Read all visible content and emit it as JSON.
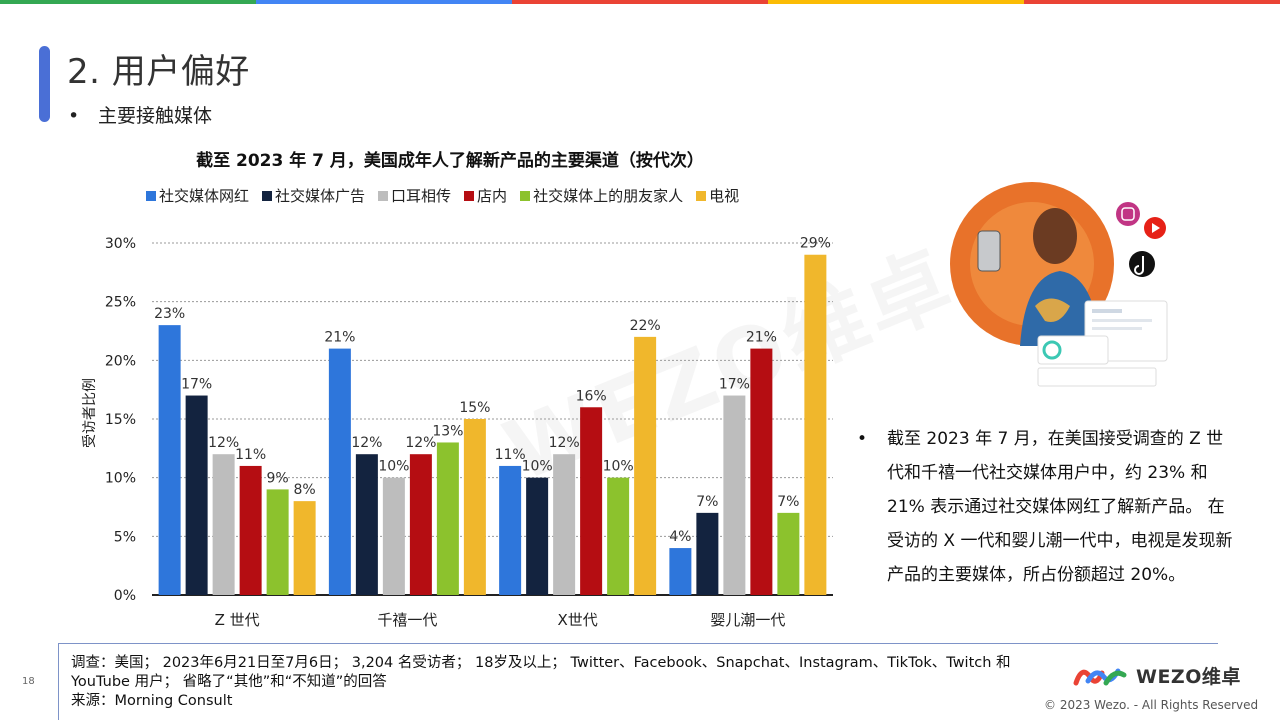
{
  "slide": {
    "title": "2. 用户偏好",
    "subtitle": "主要接触媒体",
    "page_number": "18",
    "watermark": "WEZO维卓"
  },
  "side_note": {
    "text": "截至 2023 年 7 月，在美国接受调查的 Z 世代和千禧一代社交媒体用户中，约 23% 和 21% 表示通过社交媒体网红了解新产品。 在受访的 X 一代和婴儿潮一代中，电视是发现新产品的主要媒体，所占份额超过 20%。"
  },
  "footer": {
    "survey": "调查：美国； 2023年6月21日至7月6日； 3,204 名受访者； 18岁及以上； Twitter、Facebook、Snapchat、Instagram、TikTok、Twitch 和 YouTube 用户； 省略了“其他”和“不知道”的回答",
    "source": "来源：Morning Consult",
    "logo_text": "WEZO维卓",
    "copyright": "© 2023 Wezo. - All Rights Reserved"
  },
  "colors": {
    "topbar": [
      "#34a853",
      "#4285f4",
      "#ea4335",
      "#fbbc05",
      "#ea4335"
    ],
    "accent": "#4a6fd6"
  },
  "chart_data": {
    "type": "bar",
    "title": "截至 2023 年 7 月，美国成年人了解新产品的主要渠道（按代次）",
    "xlabel": "",
    "ylabel": "受访者比例",
    "ylim": [
      0,
      30
    ],
    "yticks": [
      "0%",
      "5%",
      "10%",
      "15%",
      "20%",
      "25%",
      "30%"
    ],
    "grid": true,
    "legend_position": "top",
    "categories": [
      "Z 世代",
      "千禧一代",
      "X世代",
      "婴儿潮一代"
    ],
    "series": [
      {
        "name": "社交媒体网红",
        "color": "#2e76db",
        "values": [
          23,
          21,
          11,
          4
        ]
      },
      {
        "name": "社交媒体广告",
        "color": "#13233f",
        "values": [
          17,
          12,
          10,
          7
        ]
      },
      {
        "name": "口耳相传",
        "color": "#bdbdbd",
        "values": [
          12,
          10,
          12,
          17
        ]
      },
      {
        "name": "店内",
        "color": "#b50d12",
        "values": [
          11,
          12,
          16,
          21
        ]
      },
      {
        "name": "社交媒体上的朋友家人",
        "color": "#8cc22d",
        "values": [
          9,
          13,
          10,
          7
        ]
      },
      {
        "name": "电视",
        "color": "#f0b72c",
        "values": [
          8,
          15,
          22,
          29
        ]
      }
    ]
  }
}
